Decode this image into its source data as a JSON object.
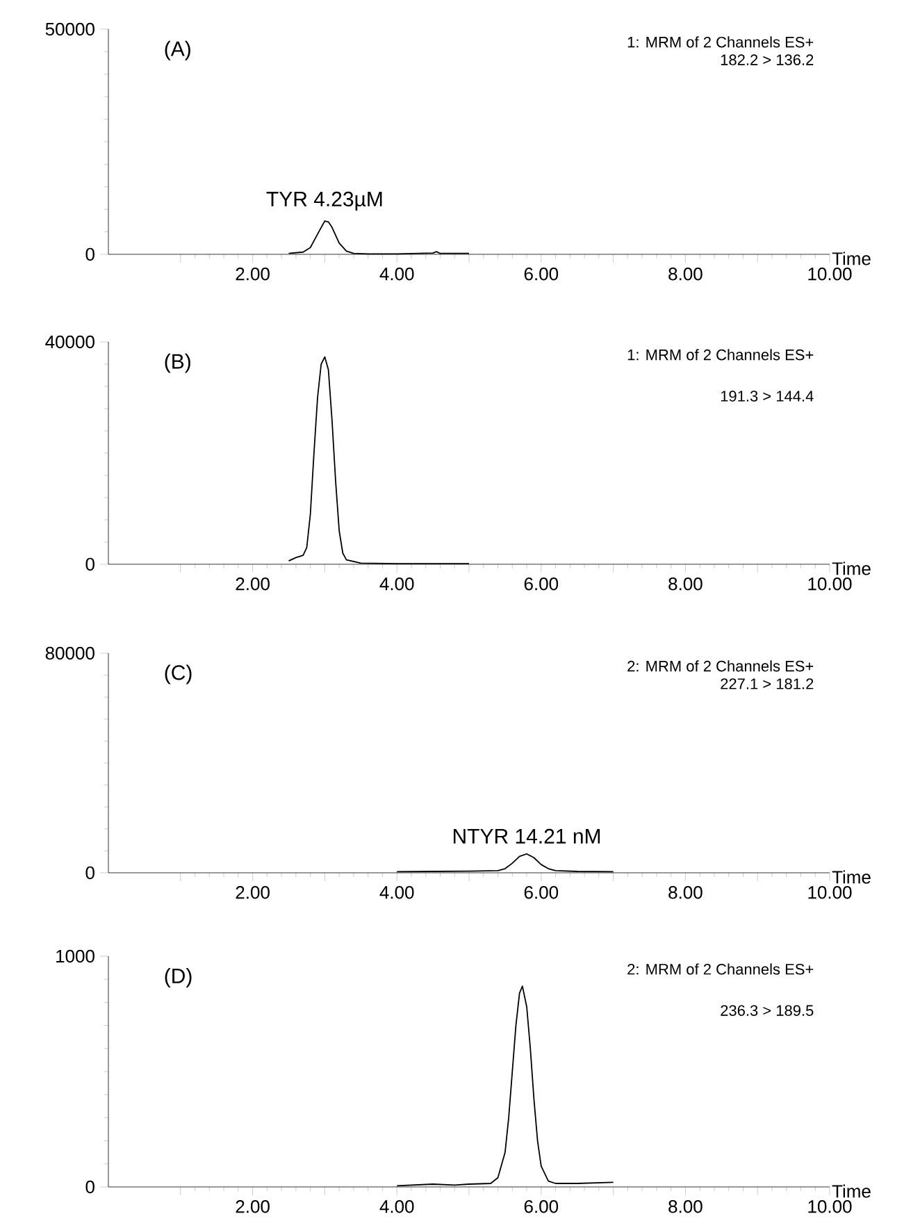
{
  "chart_data": [
    {
      "type": "line",
      "title": "(A)",
      "xlabel": "Time",
      "xlim": [
        0,
        10
      ],
      "ylim": [
        0,
        50000
      ],
      "xticks": [
        {
          "value": 1,
          "label": null
        },
        {
          "value": 2,
          "label": "2.00"
        },
        {
          "value": 3,
          "label": null
        },
        {
          "value": 4,
          "label": "4.00"
        },
        {
          "value": 5,
          "label": null
        },
        {
          "value": 6,
          "label": "6.00"
        },
        {
          "value": 7,
          "label": null
        },
        {
          "value": 8,
          "label": "8.00"
        },
        {
          "value": 9,
          "label": null
        },
        {
          "value": 10,
          "label": "10.00"
        }
      ],
      "yticks": [
        0,
        50000
      ],
      "series": [
        {
          "color": "#000000",
          "x": [
            2.5,
            2.7,
            2.8,
            2.9,
            3.0,
            3.05,
            3.1,
            3.2,
            3.3,
            3.4,
            3.6,
            4.0,
            4.5,
            4.55,
            4.6,
            5.0
          ],
          "values": [
            200,
            500,
            1500,
            4500,
            7400,
            7200,
            6000,
            2500,
            700,
            200,
            100,
            100,
            300,
            600,
            200,
            200
          ]
        }
      ],
      "annotations": [
        "1: MRM of 2 Channels ES+",
        "182.2 > 136.2",
        {
          "text": "TYR 4.23µM",
          "x": 3.0,
          "y": 7400
        }
      ]
    },
    {
      "type": "line",
      "title": "(B)",
      "xlabel": "Time",
      "xlim": [
        0,
        10
      ],
      "ylim": [
        0,
        40000
      ],
      "xticks": [
        {
          "value": 1,
          "label": null
        },
        {
          "value": 2,
          "label": "2.00"
        },
        {
          "value": 3,
          "label": null
        },
        {
          "value": 4,
          "label": "4.00"
        },
        {
          "value": 5,
          "label": null
        },
        {
          "value": 6,
          "label": "6.00"
        },
        {
          "value": 7,
          "label": null
        },
        {
          "value": 8,
          "label": "8.00"
        },
        {
          "value": 9,
          "label": null
        },
        {
          "value": 10,
          "label": "10.00"
        }
      ],
      "yticks": [
        0,
        40000
      ],
      "series": [
        {
          "color": "#000000",
          "x": [
            2.5,
            2.6,
            2.7,
            2.75,
            2.8,
            2.85,
            2.9,
            2.95,
            3.0,
            3.05,
            3.1,
            3.15,
            3.2,
            3.25,
            3.3,
            3.5,
            4.0,
            5.0
          ],
          "values": [
            600,
            1200,
            1600,
            3000,
            9000,
            20000,
            30000,
            36000,
            37300,
            35000,
            26000,
            15000,
            6000,
            2000,
            800,
            200,
            100,
            100
          ]
        }
      ],
      "annotations": [
        "1: MRM of 2 Channels ES+",
        "191.3 > 144.4"
      ]
    },
    {
      "type": "line",
      "title": "(C)",
      "xlabel": "Time",
      "xlim": [
        0,
        10
      ],
      "ylim": [
        0,
        80000
      ],
      "xticks": [
        {
          "value": 1,
          "label": null
        },
        {
          "value": 2,
          "label": "2.00"
        },
        {
          "value": 3,
          "label": null
        },
        {
          "value": 4,
          "label": "4.00"
        },
        {
          "value": 5,
          "label": null
        },
        {
          "value": 6,
          "label": "6.00"
        },
        {
          "value": 7,
          "label": null
        },
        {
          "value": 8,
          "label": "8.00"
        },
        {
          "value": 9,
          "label": null
        },
        {
          "value": 10,
          "label": "10.00"
        }
      ],
      "yticks": [
        0,
        80000
      ],
      "series": [
        {
          "color": "#000000",
          "x": [
            4.0,
            4.5,
            5.0,
            5.4,
            5.5,
            5.6,
            5.7,
            5.8,
            5.9,
            6.0,
            6.1,
            6.2,
            6.5,
            7.0
          ],
          "values": [
            400,
            500,
            600,
            800,
            1500,
            3500,
            6000,
            6900,
            5500,
            3000,
            1500,
            800,
            500,
            400
          ]
        }
      ],
      "annotations": [
        "2: MRM of 2 Channels ES+",
        "227.1 > 181.2",
        {
          "text": "NTYR 14.21 nM",
          "x": 5.8,
          "y": 6900
        }
      ]
    },
    {
      "type": "line",
      "title": "(D)",
      "xlabel": "Time",
      "xlim": [
        0,
        10
      ],
      "ylim": [
        0,
        1000
      ],
      "xticks": [
        {
          "value": 1,
          "label": null
        },
        {
          "value": 2,
          "label": "2.00"
        },
        {
          "value": 3,
          "label": null
        },
        {
          "value": 4,
          "label": "4.00"
        },
        {
          "value": 5,
          "label": null
        },
        {
          "value": 6,
          "label": "6.00"
        },
        {
          "value": 7,
          "label": null
        },
        {
          "value": 8,
          "label": "8.00"
        },
        {
          "value": 9,
          "label": null
        },
        {
          "value": 10,
          "label": "10.00"
        }
      ],
      "yticks": [
        0,
        1000
      ],
      "series": [
        {
          "color": "#000000",
          "x": [
            4.0,
            4.5,
            4.8,
            5.0,
            5.3,
            5.4,
            5.5,
            5.55,
            5.6,
            5.65,
            5.7,
            5.74,
            5.8,
            5.85,
            5.9,
            5.95,
            6.0,
            6.1,
            6.2,
            6.5,
            7.0
          ],
          "values": [
            5,
            12,
            8,
            12,
            15,
            40,
            150,
            300,
            500,
            700,
            840,
            870,
            780,
            600,
            380,
            200,
            90,
            25,
            15,
            15,
            20
          ]
        }
      ],
      "annotations": [
        "2: MRM of 2 Channels ES+",
        "236.3 > 189.5"
      ]
    }
  ]
}
